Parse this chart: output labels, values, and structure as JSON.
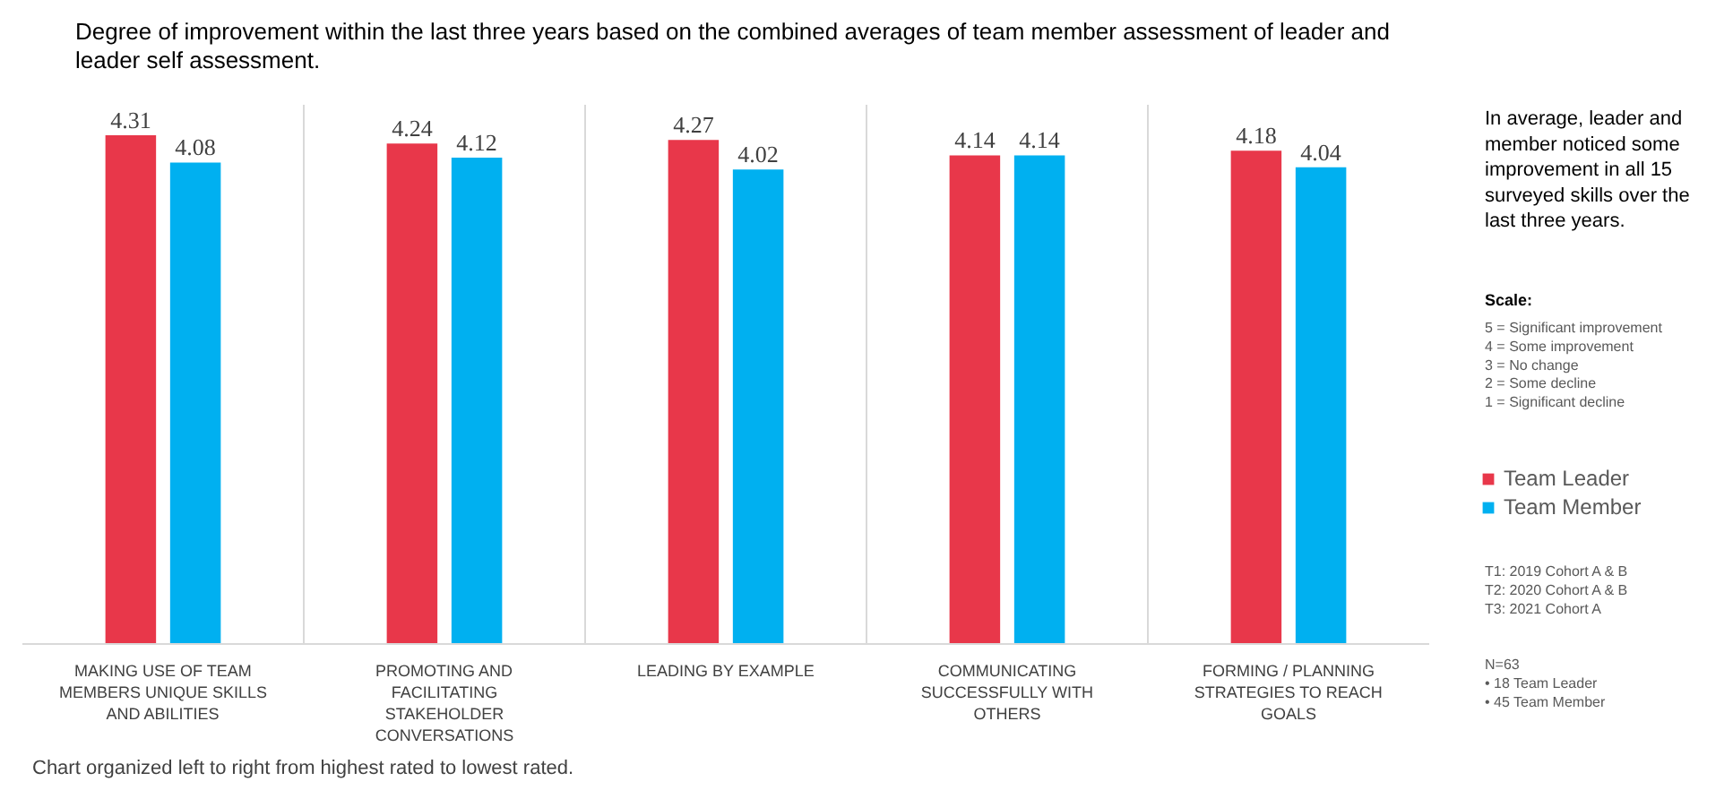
{
  "chart_data": {
    "type": "bar",
    "title": "Degree of improvement within the last three years based on the combined averages of team member assessment of leader and leader self assessment.",
    "categories": [
      "MAKING USE OF TEAM MEMBERS UNIQUE SKILLS AND ABILITIES",
      "PROMOTING AND FACILITATING STAKEHOLDER CONVERSATIONS",
      "LEADING BY EXAMPLE",
      "COMMUNICATING SUCCESSFULLY WITH OTHERS",
      "FORMING / PLANNING STRATEGIES TO REACH GOALS"
    ],
    "series": [
      {
        "name": "Team Leader",
        "color": "#e8374a",
        "values": [
          4.31,
          4.24,
          4.27,
          4.14,
          4.18
        ]
      },
      {
        "name": "Team Member",
        "color": "#00b0f0",
        "values": [
          4.08,
          4.12,
          4.02,
          4.14,
          4.04
        ]
      }
    ],
    "data_labels": true,
    "legend": "right",
    "grid": "x",
    "annotations": [
      "In average, leader and member noticed some improvement in all 15 surveyed skills over the last three years.",
      "Scale:",
      "5 = Significant improvement\n4 = Some improvement\n3 = No change\n2 = Some decline\n1 = Significant decline",
      "T1: 2019 Cohort A & B\nT2: 2020 Cohort A & B\nT3: 2021 Cohort A",
      "N=63\n•   18 Team Leader\n•   45 Team Member",
      "Chart organized left to right from highest rated to lowest rated."
    ]
  }
}
